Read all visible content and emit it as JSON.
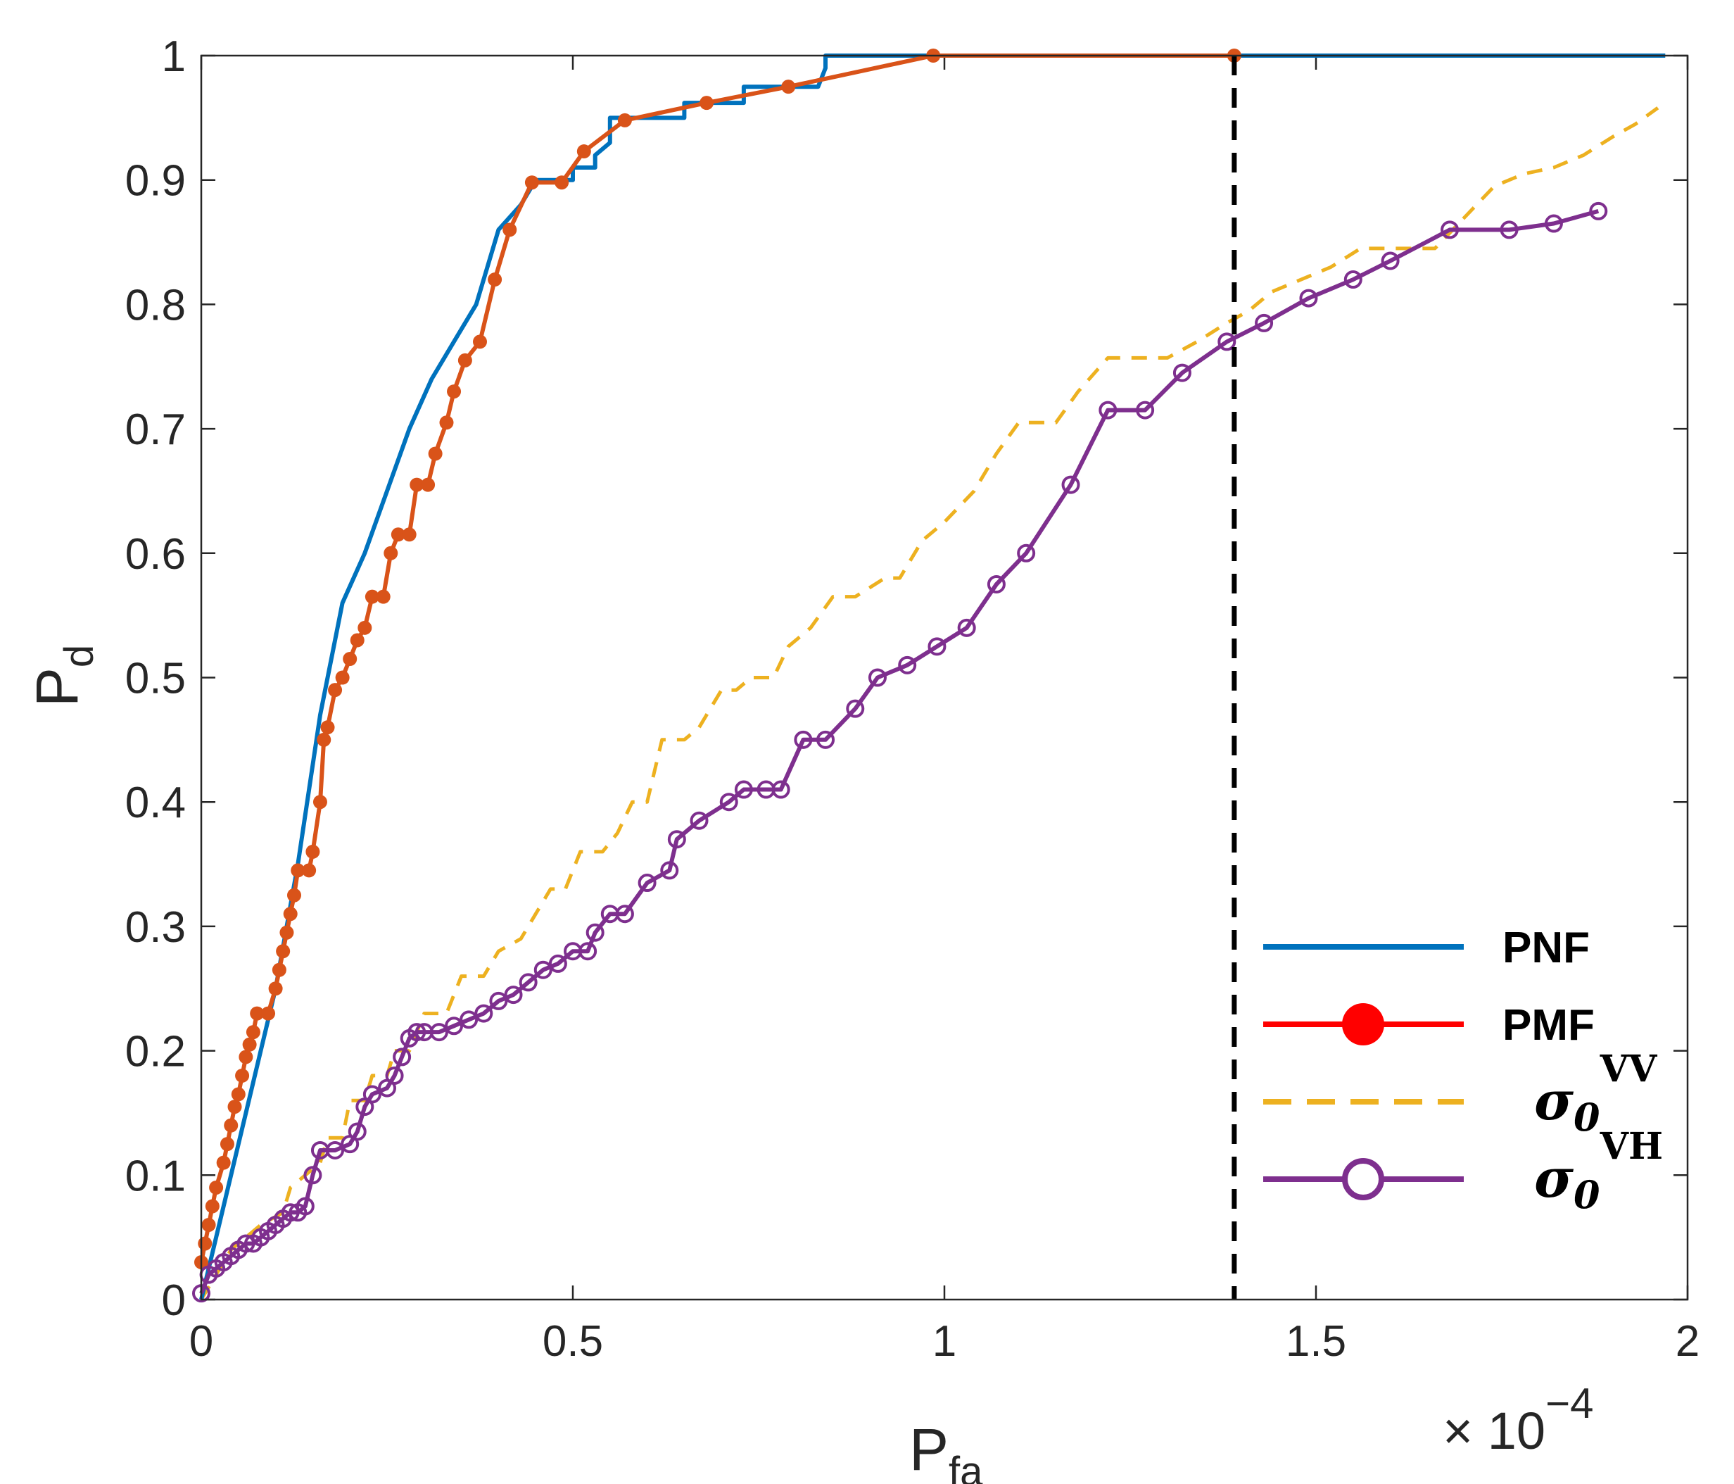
{
  "chart_data": {
    "type": "line",
    "xlabel": "P",
    "xlabel_sub": "fa",
    "ylabel": "P",
    "ylabel_sub": "d",
    "x_multiplier": "× 10",
    "x_multiplier_exp": "−4",
    "xlim": [
      0,
      2
    ],
    "ylim": [
      0,
      1
    ],
    "xticks": [
      0,
      0.5,
      1,
      1.5,
      2
    ],
    "xtick_labels": [
      "0",
      "0.5",
      "1",
      "1.5",
      "2"
    ],
    "yticks": [
      0,
      0.1,
      0.2,
      0.3,
      0.4,
      0.5,
      0.6,
      0.7,
      0.8,
      0.9,
      1
    ],
    "ytick_labels": [
      "0",
      "0.1",
      "0.2",
      "0.3",
      "0.4",
      "0.5",
      "0.6",
      "0.7",
      "0.8",
      "0.9",
      "1"
    ],
    "threshold_line_x": 1.39,
    "legend_position": "bottom-right",
    "series": [
      {
        "name": "PNF",
        "color": "#0072bd",
        "style": "solid",
        "marker": "none",
        "points": [
          [
            0,
            0
          ],
          [
            0.02,
            0.05
          ],
          [
            0.06,
            0.15
          ],
          [
            0.1,
            0.25
          ],
          [
            0.13,
            0.35
          ],
          [
            0.16,
            0.47
          ],
          [
            0.19,
            0.56
          ],
          [
            0.22,
            0.6
          ],
          [
            0.25,
            0.65
          ],
          [
            0.28,
            0.7
          ],
          [
            0.31,
            0.74
          ],
          [
            0.34,
            0.77
          ],
          [
            0.37,
            0.8
          ],
          [
            0.4,
            0.86
          ],
          [
            0.43,
            0.88
          ],
          [
            0.45,
            0.9
          ],
          [
            0.5,
            0.9
          ],
          [
            0.5,
            0.91
          ],
          [
            0.53,
            0.91
          ],
          [
            0.53,
            0.92
          ],
          [
            0.55,
            0.93
          ],
          [
            0.55,
            0.95
          ],
          [
            0.6,
            0.95
          ],
          [
            0.65,
            0.95
          ],
          [
            0.65,
            0.962
          ],
          [
            0.73,
            0.962
          ],
          [
            0.73,
            0.975
          ],
          [
            0.83,
            0.975
          ],
          [
            0.84,
            0.99
          ],
          [
            0.84,
            1
          ],
          [
            0.88,
            1
          ],
          [
            1.0,
            1
          ],
          [
            1.5,
            1
          ],
          [
            1.97,
            1
          ]
        ]
      },
      {
        "name": "PMF",
        "color": "#d95319",
        "style": "solid",
        "marker": "filled-dot",
        "legend_marker_color": "#ff0000",
        "legend_line_color": "#ff0000",
        "points": [
          [
            0,
            0.03
          ],
          [
            0.005,
            0.045
          ],
          [
            0.01,
            0.06
          ],
          [
            0.015,
            0.075
          ],
          [
            0.02,
            0.09
          ],
          [
            0.03,
            0.11
          ],
          [
            0.035,
            0.125
          ],
          [
            0.04,
            0.14
          ],
          [
            0.045,
            0.155
          ],
          [
            0.05,
            0.165
          ],
          [
            0.055,
            0.18
          ],
          [
            0.06,
            0.195
          ],
          [
            0.065,
            0.205
          ],
          [
            0.07,
            0.215
          ],
          [
            0.075,
            0.23
          ],
          [
            0.09,
            0.23
          ],
          [
            0.1,
            0.25
          ],
          [
            0.105,
            0.265
          ],
          [
            0.11,
            0.28
          ],
          [
            0.115,
            0.295
          ],
          [
            0.12,
            0.31
          ],
          [
            0.125,
            0.325
          ],
          [
            0.13,
            0.345
          ],
          [
            0.145,
            0.345
          ],
          [
            0.15,
            0.36
          ],
          [
            0.16,
            0.4
          ],
          [
            0.165,
            0.45
          ],
          [
            0.17,
            0.46
          ],
          [
            0.18,
            0.49
          ],
          [
            0.19,
            0.5
          ],
          [
            0.2,
            0.515
          ],
          [
            0.21,
            0.53
          ],
          [
            0.22,
            0.54
          ],
          [
            0.23,
            0.565
          ],
          [
            0.245,
            0.565
          ],
          [
            0.255,
            0.6
          ],
          [
            0.265,
            0.615
          ],
          [
            0.28,
            0.615
          ],
          [
            0.29,
            0.655
          ],
          [
            0.305,
            0.655
          ],
          [
            0.315,
            0.68
          ],
          [
            0.33,
            0.705
          ],
          [
            0.34,
            0.73
          ],
          [
            0.355,
            0.755
          ],
          [
            0.375,
            0.77
          ],
          [
            0.395,
            0.82
          ],
          [
            0.415,
            0.86
          ],
          [
            0.445,
            0.898
          ],
          [
            0.485,
            0.898
          ],
          [
            0.515,
            0.923
          ],
          [
            0.57,
            0.948
          ],
          [
            0.68,
            0.962
          ],
          [
            0.79,
            0.975
          ],
          [
            0.985,
            1
          ],
          [
            1.39,
            1
          ]
        ]
      },
      {
        "name": "σ₀ᵛᵛ",
        "legend_symbol": "σ",
        "legend_sub": "0",
        "legend_sup": "VV",
        "color": "#edb120",
        "style": "dashed",
        "marker": "none",
        "points": [
          [
            0,
            0
          ],
          [
            0.02,
            0.02
          ],
          [
            0.04,
            0.04
          ],
          [
            0.08,
            0.06
          ],
          [
            0.11,
            0.07
          ],
          [
            0.12,
            0.09
          ],
          [
            0.14,
            0.1
          ],
          [
            0.16,
            0.11
          ],
          [
            0.17,
            0.13
          ],
          [
            0.19,
            0.13
          ],
          [
            0.2,
            0.16
          ],
          [
            0.22,
            0.16
          ],
          [
            0.23,
            0.18
          ],
          [
            0.25,
            0.18
          ],
          [
            0.26,
            0.2
          ],
          [
            0.28,
            0.2
          ],
          [
            0.3,
            0.23
          ],
          [
            0.33,
            0.23
          ],
          [
            0.35,
            0.26
          ],
          [
            0.38,
            0.26
          ],
          [
            0.4,
            0.28
          ],
          [
            0.43,
            0.29
          ],
          [
            0.45,
            0.31
          ],
          [
            0.47,
            0.33
          ],
          [
            0.49,
            0.33
          ],
          [
            0.51,
            0.36
          ],
          [
            0.54,
            0.36
          ],
          [
            0.56,
            0.375
          ],
          [
            0.58,
            0.4
          ],
          [
            0.6,
            0.4
          ],
          [
            0.62,
            0.45
          ],
          [
            0.65,
            0.45
          ],
          [
            0.67,
            0.46
          ],
          [
            0.7,
            0.49
          ],
          [
            0.72,
            0.49
          ],
          [
            0.74,
            0.5
          ],
          [
            0.77,
            0.5
          ],
          [
            0.79,
            0.525
          ],
          [
            0.82,
            0.54
          ],
          [
            0.85,
            0.565
          ],
          [
            0.88,
            0.565
          ],
          [
            0.92,
            0.58
          ],
          [
            0.94,
            0.58
          ],
          [
            0.97,
            0.61
          ],
          [
            1.0,
            0.625
          ],
          [
            1.04,
            0.65
          ],
          [
            1.07,
            0.68
          ],
          [
            1.1,
            0.705
          ],
          [
            1.12,
            0.705
          ],
          [
            1.15,
            0.705
          ],
          [
            1.18,
            0.73
          ],
          [
            1.22,
            0.757
          ],
          [
            1.27,
            0.757
          ],
          [
            1.3,
            0.757
          ],
          [
            1.34,
            0.77
          ],
          [
            1.38,
            0.785
          ],
          [
            1.41,
            0.795
          ],
          [
            1.44,
            0.81
          ],
          [
            1.48,
            0.82
          ],
          [
            1.52,
            0.83
          ],
          [
            1.56,
            0.845
          ],
          [
            1.6,
            0.845
          ],
          [
            1.63,
            0.845
          ],
          [
            1.66,
            0.845
          ],
          [
            1.7,
            0.87
          ],
          [
            1.74,
            0.895
          ],
          [
            1.78,
            0.905
          ],
          [
            1.82,
            0.91
          ],
          [
            1.86,
            0.92
          ],
          [
            1.9,
            0.935
          ],
          [
            1.93,
            0.945
          ],
          [
            1.96,
            0.958
          ]
        ]
      },
      {
        "name": "σ₀ᵛᴴ",
        "legend_symbol": "σ",
        "legend_sub": "0",
        "legend_sup": "VH",
        "color": "#7e2f8e",
        "style": "solid",
        "marker": "open-circle",
        "points": [
          [
            0,
            0.005
          ],
          [
            0.01,
            0.02
          ],
          [
            0.02,
            0.025
          ],
          [
            0.03,
            0.03
          ],
          [
            0.04,
            0.035
          ],
          [
            0.05,
            0.04
          ],
          [
            0.06,
            0.045
          ],
          [
            0.07,
            0.045
          ],
          [
            0.08,
            0.05
          ],
          [
            0.09,
            0.055
          ],
          [
            0.1,
            0.06
          ],
          [
            0.11,
            0.065
          ],
          [
            0.12,
            0.07
          ],
          [
            0.13,
            0.07
          ],
          [
            0.14,
            0.075
          ],
          [
            0.15,
            0.1
          ],
          [
            0.16,
            0.12
          ],
          [
            0.18,
            0.12
          ],
          [
            0.2,
            0.125
          ],
          [
            0.21,
            0.135
          ],
          [
            0.22,
            0.155
          ],
          [
            0.23,
            0.165
          ],
          [
            0.25,
            0.17
          ],
          [
            0.26,
            0.18
          ],
          [
            0.27,
            0.195
          ],
          [
            0.28,
            0.21
          ],
          [
            0.29,
            0.215
          ],
          [
            0.3,
            0.215
          ],
          [
            0.32,
            0.215
          ],
          [
            0.34,
            0.22
          ],
          [
            0.36,
            0.225
          ],
          [
            0.38,
            0.23
          ],
          [
            0.4,
            0.24
          ],
          [
            0.42,
            0.245
          ],
          [
            0.44,
            0.255
          ],
          [
            0.46,
            0.265
          ],
          [
            0.48,
            0.27
          ],
          [
            0.5,
            0.28
          ],
          [
            0.52,
            0.28
          ],
          [
            0.53,
            0.295
          ],
          [
            0.55,
            0.31
          ],
          [
            0.57,
            0.31
          ],
          [
            0.6,
            0.335
          ],
          [
            0.63,
            0.345
          ],
          [
            0.64,
            0.37
          ],
          [
            0.67,
            0.385
          ],
          [
            0.71,
            0.4
          ],
          [
            0.73,
            0.41
          ],
          [
            0.76,
            0.41
          ],
          [
            0.78,
            0.41
          ],
          [
            0.81,
            0.45
          ],
          [
            0.84,
            0.45
          ],
          [
            0.88,
            0.475
          ],
          [
            0.91,
            0.5
          ],
          [
            0.95,
            0.51
          ],
          [
            0.99,
            0.525
          ],
          [
            1.03,
            0.54
          ],
          [
            1.07,
            0.575
          ],
          [
            1.11,
            0.6
          ],
          [
            1.17,
            0.655
          ],
          [
            1.22,
            0.715
          ],
          [
            1.27,
            0.715
          ],
          [
            1.32,
            0.745
          ],
          [
            1.38,
            0.77
          ],
          [
            1.43,
            0.785
          ],
          [
            1.49,
            0.805
          ],
          [
            1.55,
            0.82
          ],
          [
            1.6,
            0.835
          ],
          [
            1.68,
            0.86
          ],
          [
            1.76,
            0.86
          ],
          [
            1.82,
            0.865
          ],
          [
            1.88,
            0.875
          ]
        ]
      }
    ]
  }
}
